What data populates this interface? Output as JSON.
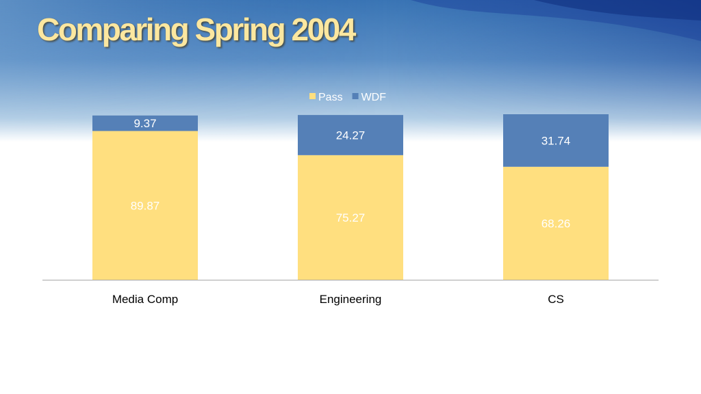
{
  "slide": {
    "title": "Comparing Spring 2004"
  },
  "colors": {
    "pass": "#ffdf7f",
    "wdf": "#5580b7",
    "axis": "#a6a6a6",
    "title": "#fbe7a0"
  },
  "chart_data": {
    "type": "bar",
    "stacked": true,
    "title": "",
    "xlabel": "",
    "ylabel": "",
    "categories": [
      "Media Comp",
      "Engineering",
      "CS"
    ],
    "series": [
      {
        "name": "Pass",
        "values": [
          89.87,
          75.27,
          68.26
        ]
      },
      {
        "name": "WDF",
        "values": [
          9.37,
          24.27,
          31.74
        ]
      }
    ],
    "ylim": [
      0,
      100
    ],
    "grid": false,
    "legend_position": "top"
  }
}
